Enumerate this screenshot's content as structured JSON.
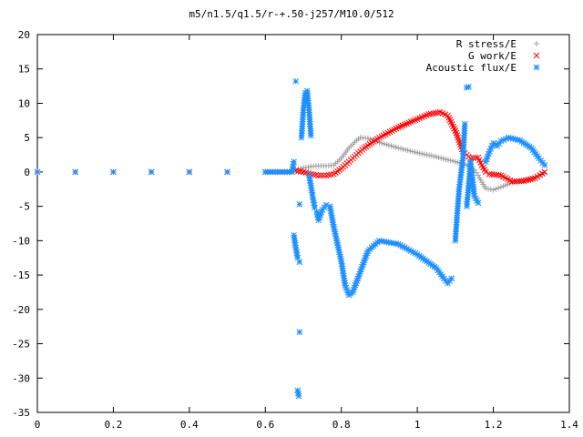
{
  "chart_data": {
    "type": "scatter",
    "title": "m5/n1.5/q1.5/r-+.50-j257/M10.0/512",
    "xlabel": "",
    "ylabel": "",
    "xlim": [
      0,
      1.4
    ],
    "ylim": [
      -35,
      20
    ],
    "x_ticks": [
      0,
      0.2,
      0.4,
      0.6,
      0.8,
      1,
      1.2,
      1.4
    ],
    "x_tick_labels": [
      "0",
      "0.2",
      "0.4",
      "0.6",
      "0.8",
      "1",
      "1.2",
      "1.4"
    ],
    "y_ticks": [
      20,
      15,
      10,
      5,
      0,
      -5,
      -10,
      -15,
      -20,
      -25,
      -30,
      -35
    ],
    "y_tick_labels": [
      "20",
      "15",
      "10",
      "5",
      "0",
      "-5",
      "-10",
      "-15",
      "-20",
      "-25",
      "-30",
      "-35"
    ],
    "grid": false,
    "legend_position": "top-right",
    "series": [
      {
        "name": "R stress/E",
        "marker": "+",
        "color": "#a0a0a0",
        "points": [
          [
            0.0,
            0
          ],
          [
            0.1,
            0
          ],
          [
            0.2,
            0
          ],
          [
            0.3,
            0
          ],
          [
            0.4,
            0
          ],
          [
            0.5,
            0
          ],
          [
            0.6,
            0
          ],
          [
            0.67,
            0
          ],
          [
            0.68,
            0.3
          ],
          [
            0.7,
            0.6
          ],
          [
            0.72,
            0.8
          ],
          [
            0.74,
            0.9
          ],
          [
            0.76,
            0.9
          ],
          [
            0.78,
            1.0
          ],
          [
            0.8,
            2.0
          ],
          [
            0.82,
            3.5
          ],
          [
            0.84,
            4.6
          ],
          [
            0.85,
            5.0
          ],
          [
            0.87,
            4.9
          ],
          [
            0.9,
            4.3
          ],
          [
            0.95,
            3.5
          ],
          [
            1.0,
            2.8
          ],
          [
            1.05,
            2.2
          ],
          [
            1.1,
            1.5
          ],
          [
            1.13,
            1.0
          ],
          [
            1.15,
            0.3
          ],
          [
            1.16,
            -0.5
          ],
          [
            1.17,
            -1.5
          ],
          [
            1.18,
            -2.4
          ],
          [
            1.2,
            -2.6
          ],
          [
            1.22,
            -2.2
          ],
          [
            1.25,
            -1.5
          ],
          [
            1.3,
            -1.0
          ],
          [
            1.335,
            -0.2
          ]
        ]
      },
      {
        "name": "G work/E",
        "marker": "×",
        "color": "#ff0000",
        "points": [
          [
            0.0,
            0
          ],
          [
            0.1,
            0
          ],
          [
            0.2,
            0
          ],
          [
            0.3,
            0
          ],
          [
            0.4,
            0
          ],
          [
            0.5,
            0
          ],
          [
            0.6,
            0
          ],
          [
            0.67,
            0
          ],
          [
            0.68,
            0.2
          ],
          [
            0.7,
            0.0
          ],
          [
            0.72,
            -0.3
          ],
          [
            0.74,
            -0.5
          ],
          [
            0.76,
            -0.5
          ],
          [
            0.78,
            -0.3
          ],
          [
            0.8,
            0.5
          ],
          [
            0.83,
            2.0
          ],
          [
            0.86,
            3.5
          ],
          [
            0.9,
            5.0
          ],
          [
            0.95,
            6.5
          ],
          [
            1.0,
            7.7
          ],
          [
            1.03,
            8.4
          ],
          [
            1.06,
            8.7
          ],
          [
            1.08,
            8.2
          ],
          [
            1.1,
            6.0
          ],
          [
            1.12,
            3.0
          ],
          [
            1.14,
            2.0
          ],
          [
            1.16,
            2.1
          ],
          [
            1.17,
            1.0
          ],
          [
            1.18,
            0.0
          ],
          [
            1.19,
            -0.3
          ],
          [
            1.22,
            -0.5
          ],
          [
            1.25,
            -1.4
          ],
          [
            1.28,
            -1.3
          ],
          [
            1.31,
            -0.9
          ],
          [
            1.335,
            0
          ]
        ]
      },
      {
        "name": "Acoustic flux/E",
        "marker": "*",
        "color": "#1e90ff",
        "points": [
          [
            0.0,
            0
          ],
          [
            0.1,
            0
          ],
          [
            0.2,
            0
          ],
          [
            0.3,
            0
          ],
          [
            0.4,
            0
          ],
          [
            0.5,
            0
          ],
          [
            0.6,
            0
          ],
          [
            0.67,
            0
          ],
          [
            0.675,
            1.5
          ],
          [
            0.68,
            13.2
          ],
          [
            0.675,
            -9.2
          ],
          [
            0.68,
            -11.0
          ],
          [
            0.685,
            -12.5
          ],
          [
            0.69,
            -13.1
          ],
          [
            0.69,
            -23.3
          ],
          [
            0.685,
            -31.8
          ],
          [
            0.688,
            -32.6
          ],
          [
            0.69,
            -4.7
          ],
          [
            0.695,
            5.0
          ],
          [
            0.7,
            9.0
          ],
          [
            0.705,
            11.5
          ],
          [
            0.71,
            11.8
          ],
          [
            0.715,
            9.0
          ],
          [
            0.72,
            5.3
          ],
          [
            0.715,
            -0.5
          ],
          [
            0.72,
            -2.0
          ],
          [
            0.725,
            -3.7
          ],
          [
            0.73,
            -5.2
          ],
          [
            0.735,
            -5.8
          ],
          [
            0.74,
            -7.0
          ],
          [
            0.75,
            -5.5
          ],
          [
            0.76,
            -4.8
          ],
          [
            0.77,
            -5.0
          ],
          [
            0.78,
            -8.0
          ],
          [
            0.8,
            -13.0
          ],
          [
            0.81,
            -16.5
          ],
          [
            0.82,
            -17.9
          ],
          [
            0.83,
            -17.5
          ],
          [
            0.85,
            -14.5
          ],
          [
            0.87,
            -11.5
          ],
          [
            0.9,
            -10.0
          ],
          [
            0.95,
            -10.5
          ],
          [
            1.0,
            -12.0
          ],
          [
            1.05,
            -14.0
          ],
          [
            1.07,
            -15.5
          ],
          [
            1.08,
            -16.2
          ],
          [
            1.09,
            -15.5
          ],
          [
            1.1,
            -10.0
          ],
          [
            1.105,
            -6.0
          ],
          [
            1.11,
            -2.5
          ],
          [
            1.12,
            2.0
          ],
          [
            1.125,
            7.0
          ],
          [
            1.13,
            12.3
          ],
          [
            1.135,
            12.4
          ],
          [
            1.13,
            -5.0
          ],
          [
            1.135,
            -2.0
          ],
          [
            1.14,
            1.5
          ],
          [
            1.15,
            -3.5
          ],
          [
            1.16,
            -4.5
          ],
          [
            1.18,
            1.5
          ],
          [
            1.19,
            3.0
          ],
          [
            1.2,
            4.2
          ],
          [
            1.21,
            3.8
          ],
          [
            1.22,
            4.5
          ],
          [
            1.24,
            5.0
          ],
          [
            1.27,
            4.6
          ],
          [
            1.3,
            3.5
          ],
          [
            1.32,
            2.0
          ],
          [
            1.335,
            1.0
          ]
        ]
      }
    ]
  }
}
